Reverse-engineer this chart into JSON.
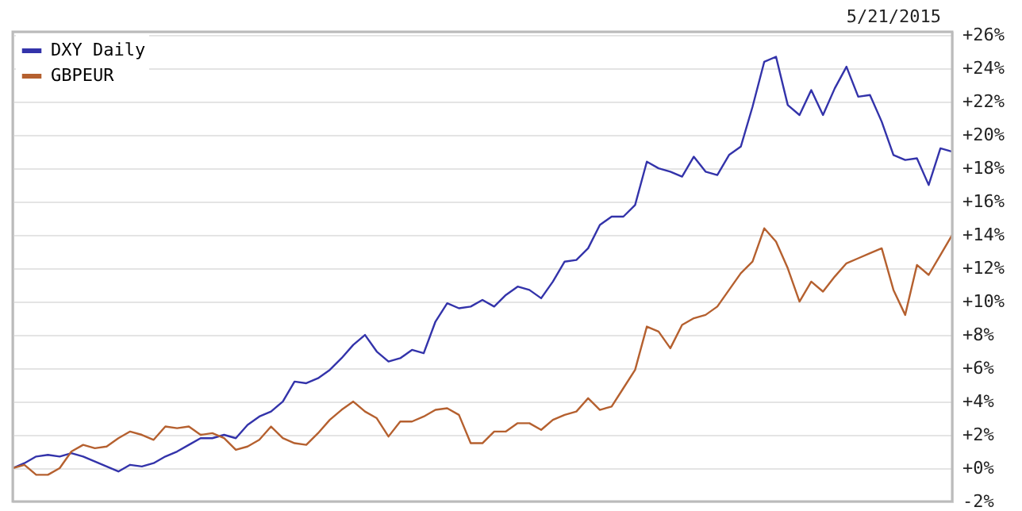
{
  "chart_data": {
    "type": "line",
    "annotations": [
      "5/21/2015"
    ],
    "categories": [
      null,
      null,
      null,
      null,
      null,
      null,
      null,
      null,
      null,
      null,
      null,
      null,
      null,
      null,
      null,
      null,
      null,
      null,
      null,
      null,
      null,
      null,
      null,
      null,
      null,
      null,
      null,
      null,
      null,
      null,
      null,
      null,
      null,
      null,
      null,
      null,
      null,
      null,
      null,
      null,
      null,
      null,
      null,
      null,
      null,
      null,
      null,
      null,
      null,
      null,
      null,
      null,
      null,
      null,
      null,
      null,
      null,
      null,
      null,
      null,
      null,
      null,
      null,
      null,
      null,
      null,
      null,
      null,
      null,
      null,
      null,
      null,
      null,
      null,
      null,
      null,
      null,
      null,
      null,
      null,
      null
    ],
    "ylim": [
      -2,
      26.2
    ],
    "yticks": [
      {
        "value": -2,
        "label": "-2%"
      },
      {
        "value": 0,
        "label": "+0%"
      },
      {
        "value": 2,
        "label": "+2%"
      },
      {
        "value": 4,
        "label": "+4%"
      },
      {
        "value": 6,
        "label": "+6%"
      },
      {
        "value": 8,
        "label": "+8%"
      },
      {
        "value": 10,
        "label": "+10%"
      },
      {
        "value": 12,
        "label": "+12%"
      },
      {
        "value": 14,
        "label": "+14%"
      },
      {
        "value": 16,
        "label": "+16%"
      },
      {
        "value": 18,
        "label": "+18%"
      },
      {
        "value": 20,
        "label": "+20%"
      },
      {
        "value": 22,
        "label": "+22%"
      },
      {
        "value": 24,
        "label": "+24%"
      },
      {
        "value": 26,
        "label": "+26%"
      }
    ],
    "tick_labels": "y",
    "grid": "y",
    "legend": "top left",
    "marker": "none",
    "line_style": "solid",
    "series": [
      {
        "name": "DXY Daily",
        "color": "#3333aa",
        "values": [
          0,
          0.3,
          0.7,
          0.8,
          0.7,
          0.9,
          0.7,
          0.4,
          0.1,
          -0.2,
          0.2,
          0.1,
          0.3,
          0.7,
          1.0,
          1.4,
          1.8,
          1.8,
          2.0,
          1.8,
          2.6,
          3.1,
          3.4,
          4.0,
          5.2,
          5.1,
          5.4,
          5.9,
          6.6,
          7.4,
          8.0,
          7.0,
          6.4,
          6.6,
          7.1,
          6.9,
          8.8,
          9.9,
          9.6,
          9.7,
          10.1,
          9.7,
          10.4,
          10.9,
          10.7,
          10.2,
          11.2,
          12.4,
          12.5,
          13.2,
          14.6,
          15.1,
          15.1,
          15.8,
          18.4,
          18.0,
          17.8,
          17.5,
          18.7,
          17.8,
          17.6,
          18.8,
          19.3,
          21.7,
          24.4,
          24.7,
          21.8,
          21.2,
          22.7,
          21.2,
          22.8,
          24.1,
          22.3,
          22.4,
          20.8,
          18.8,
          18.5,
          18.6,
          17.0,
          19.2,
          19.0
        ]
      },
      {
        "name": "GBPEUR",
        "color": "#b5602f",
        "values": [
          0,
          0.2,
          -0.4,
          -0.4,
          0.0,
          1.0,
          1.4,
          1.2,
          1.3,
          1.8,
          2.2,
          2.0,
          1.7,
          2.5,
          2.4,
          2.5,
          2.0,
          2.1,
          1.8,
          1.1,
          1.3,
          1.7,
          2.5,
          1.8,
          1.5,
          1.4,
          2.1,
          2.9,
          3.5,
          4.0,
          3.4,
          3.0,
          1.9,
          2.8,
          2.8,
          3.1,
          3.5,
          3.6,
          3.2,
          1.5,
          1.5,
          2.2,
          2.2,
          2.7,
          2.7,
          2.3,
          2.9,
          3.2,
          3.4,
          4.2,
          3.5,
          3.7,
          4.8,
          5.9,
          8.5,
          8.2,
          7.2,
          8.6,
          9.0,
          9.2,
          9.7,
          10.7,
          11.7,
          12.4,
          14.4,
          13.6,
          12.0,
          10.0,
          11.2,
          10.6,
          11.5,
          12.3,
          12.6,
          12.9,
          13.2,
          10.7,
          9.2,
          12.2,
          11.6,
          12.8,
          14.0
        ]
      }
    ]
  }
}
